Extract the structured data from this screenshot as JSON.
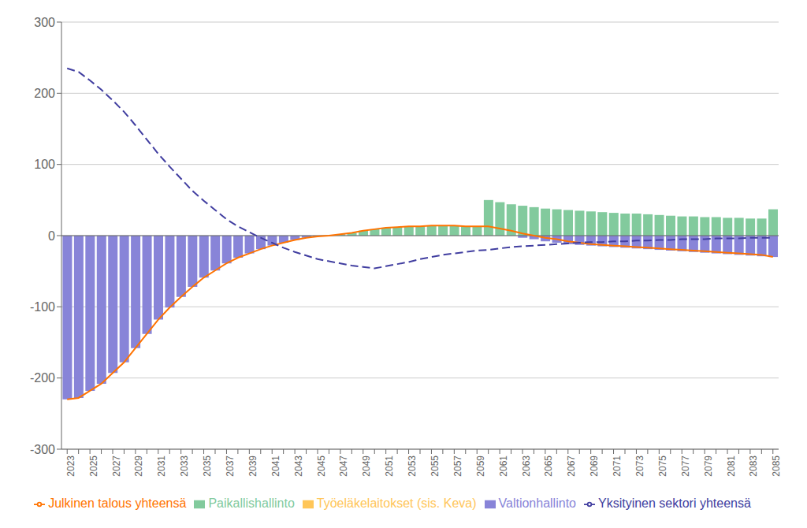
{
  "chart_data": {
    "type": "bar",
    "categories": [
      "2023",
      null,
      "2025",
      null,
      "2027",
      null,
      "2029",
      null,
      "2031",
      null,
      "2033",
      null,
      "2035",
      null,
      "2037",
      null,
      "2039",
      null,
      "2041",
      null,
      "2043",
      null,
      "2045",
      null,
      "2047",
      null,
      "2049",
      null,
      "2051",
      null,
      "2053",
      null,
      "2055",
      null,
      "2057",
      null,
      "2059",
      null,
      "2061",
      null,
      "2063",
      null,
      "2065",
      null,
      "2067",
      null,
      "2069",
      null,
      "2071",
      null,
      "2073",
      null,
      "2075",
      null,
      "2077",
      null,
      "2079",
      null,
      "2081",
      null,
      "2083",
      null,
      "2085"
    ],
    "series": [
      {
        "name": "Valtionhallinto",
        "type": "bar",
        "values": [
          -230,
          -228,
          -218,
          -208,
          -193,
          -178,
          -158,
          -138,
          -118,
          -101,
          -86,
          -72,
          -59,
          -49,
          -39,
          -31,
          -25,
          -19,
          -14,
          -10,
          -6,
          -3,
          -1,
          0,
          0,
          0,
          0,
          0,
          0,
          0,
          0,
          0,
          0,
          0,
          0,
          0,
          0,
          0,
          0,
          0,
          -3,
          -5,
          -8,
          -10,
          -12,
          -13,
          -14,
          -15,
          -16,
          -17,
          -18,
          -19,
          -20,
          -21,
          -22,
          -23,
          -24,
          -25,
          -26,
          -27,
          -28,
          -29,
          -30
        ]
      },
      {
        "name": "Paikallishallinto",
        "type": "bar",
        "values": [
          0,
          0,
          0,
          0,
          0,
          0,
          0,
          0,
          0,
          0,
          0,
          0,
          0,
          0,
          0,
          0,
          0,
          0,
          0,
          0,
          0,
          0,
          0,
          0,
          2,
          4,
          7,
          9,
          11,
          12,
          13,
          13,
          14,
          14,
          14,
          13,
          13,
          50,
          47,
          44,
          42,
          40,
          38,
          37,
          36,
          35,
          34,
          33,
          32,
          31,
          31,
          30,
          29,
          28,
          27,
          27,
          26,
          26,
          25,
          25,
          24,
          24,
          37
        ]
      },
      {
        "name": "Työeläkelaitokset (sis. Keva)",
        "type": "bar",
        "values": [
          0,
          0,
          0,
          0,
          0,
          0,
          0,
          0,
          0,
          0,
          0,
          0,
          0,
          0,
          0,
          0,
          0,
          0,
          0,
          0,
          0,
          0,
          0,
          0,
          0,
          0,
          0,
          0,
          0,
          0,
          0,
          0,
          0,
          0,
          0,
          0,
          0,
          0,
          0,
          0,
          0,
          0,
          0,
          0,
          0,
          0,
          0,
          0,
          0,
          0,
          0,
          0,
          0,
          0,
          0,
          0,
          0,
          0,
          0,
          0,
          0,
          0,
          0
        ]
      },
      {
        "name": "Julkinen talous yhteensä",
        "type": "line",
        "line_style": "solid",
        "values": [
          -230,
          -228,
          -218,
          -208,
          -193,
          -178,
          -158,
          -138,
          -118,
          -101,
          -86,
          -72,
          -59,
          -49,
          -39,
          -31,
          -25,
          -19,
          -14,
          -10,
          -6,
          -3,
          -1,
          0,
          2,
          4,
          7,
          9,
          11,
          12,
          13,
          13,
          14,
          14,
          14,
          13,
          13,
          13,
          10,
          7,
          3,
          0,
          -3,
          -5,
          -8,
          -10,
          -12,
          -13,
          -14,
          -15,
          -16,
          -17,
          -18,
          -19,
          -20,
          -21,
          -22,
          -23,
          -24,
          -25,
          -26,
          -27,
          -30
        ]
      },
      {
        "name": "Yksityinen sektori yhteensä",
        "type": "line",
        "line_style": "dashed",
        "values": [
          235,
          230,
          218,
          205,
          190,
          174,
          155,
          135,
          115,
          97,
          80,
          63,
          49,
          36,
          23,
          13,
          5,
          -3,
          -10,
          -17,
          -23,
          -28,
          -33,
          -36,
          -39,
          -42,
          -44,
          -46,
          -43,
          -40,
          -37,
          -33,
          -30,
          -27,
          -25,
          -23,
          -21,
          -20,
          -18,
          -16,
          -15,
          -14,
          -13,
          -12,
          -11,
          -10,
          -9,
          -9,
          -8,
          -8,
          -7,
          -7,
          -6,
          -6,
          -5,
          -5,
          -5,
          -4,
          -4,
          -4,
          -3,
          -3,
          -3
        ]
      }
    ],
    "ylim": [
      -300,
      300
    ],
    "yticks": [
      -300,
      -200,
      -100,
      0,
      100,
      200,
      300
    ],
    "grid": true,
    "legend": "bottom"
  }
}
